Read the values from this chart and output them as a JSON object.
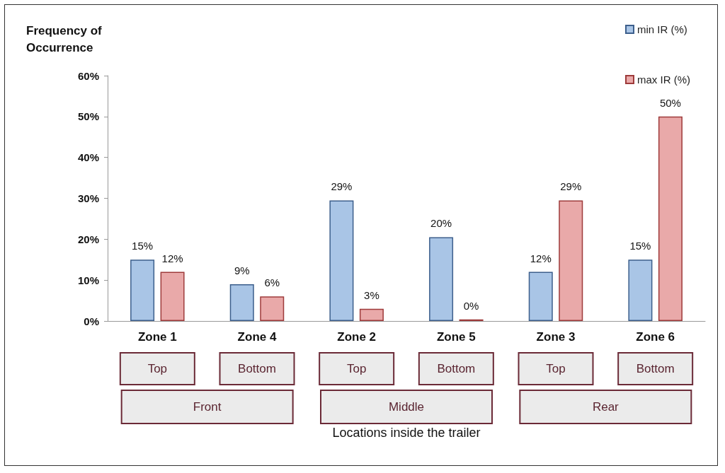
{
  "chart_data": {
    "type": "bar",
    "ylabel": "Frequency of\nOccurrence",
    "categories": [
      "Zone 1",
      "Zone 4",
      "Zone 2",
      "Zone 5",
      "Zone 3",
      "Zone 6"
    ],
    "series": [
      {
        "name": "min IR (%)",
        "color": "#a9c5e6",
        "values": [
          15,
          9,
          29.5,
          20.5,
          12,
          15
        ],
        "value_labels": [
          "15%",
          "9%",
          "29%",
          "20%",
          "12%",
          "15%"
        ]
      },
      {
        "name": "max IR (%)",
        "color": "#e9a9a9",
        "values": [
          12,
          6,
          3,
          0.4,
          29.5,
          50
        ],
        "value_labels": [
          "12%",
          "6%",
          "3%",
          "0%",
          "29%",
          "50%"
        ]
      }
    ],
    "ylim": [
      0,
      60
    ],
    "yticks": [
      {
        "value": 0,
        "label": "0%"
      },
      {
        "value": 10,
        "label": "10%"
      },
      {
        "value": 20,
        "label": "20%"
      },
      {
        "value": 30,
        "label": "30%"
      },
      {
        "value": 40,
        "label": "40%"
      },
      {
        "value": 50,
        "label": "50%"
      },
      {
        "value": 60,
        "label": "60%"
      }
    ],
    "grid": false,
    "legend": "top right",
    "annotations": [
      "Top",
      "Bottom",
      "Top",
      "Bottom",
      "Top",
      "Bottom",
      "Front",
      "Middle",
      "Rear",
      "Locations inside the trailer"
    ]
  }
}
